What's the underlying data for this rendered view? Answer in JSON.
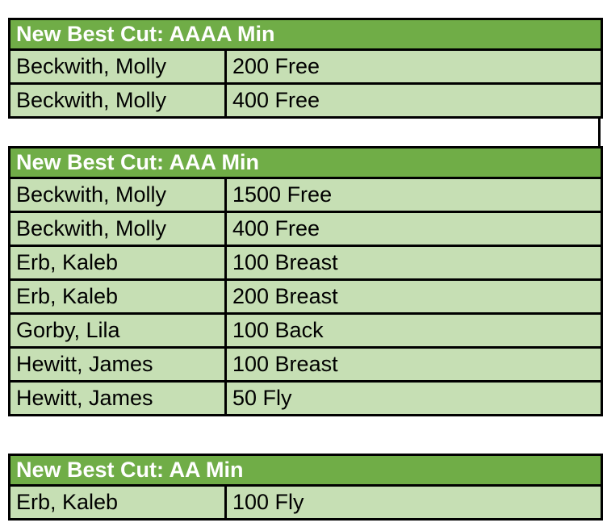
{
  "colors": {
    "header_bg": "#70AD47",
    "header_text": "#FFFFFF",
    "row_bg": "#C6DFB4",
    "cell_text": "#000000",
    "border": "#000000",
    "page_bg": "#FFFFFF"
  },
  "tables": [
    {
      "title": "New Best Cut: AAAA Min",
      "rows": [
        {
          "name": "Beckwith, Molly",
          "event": "200 Free"
        },
        {
          "name": "Beckwith, Molly",
          "event": "400 Free"
        }
      ]
    },
    {
      "title": "New Best Cut: AAA Min",
      "rows": [
        {
          "name": "Beckwith, Molly",
          "event": "1500 Free"
        },
        {
          "name": "Beckwith, Molly",
          "event": "400 Free"
        },
        {
          "name": "Erb, Kaleb",
          "event": "100 Breast"
        },
        {
          "name": "Erb, Kaleb",
          "event": "200 Breast"
        },
        {
          "name": "Gorby, Lila",
          "event": "100 Back"
        },
        {
          "name": "Hewitt, James",
          "event": "100 Breast"
        },
        {
          "name": "Hewitt, James",
          "event": "50 Fly"
        }
      ]
    },
    {
      "title": "New Best Cut: AA Min",
      "rows": [
        {
          "name": "Erb, Kaleb",
          "event": "100 Fly"
        }
      ]
    }
  ],
  "spacers": [
    {
      "after_table": 0,
      "height": 34,
      "has_right_edge_line": true
    },
    {
      "after_table": 1,
      "height": 46,
      "has_right_edge_line": false
    }
  ]
}
